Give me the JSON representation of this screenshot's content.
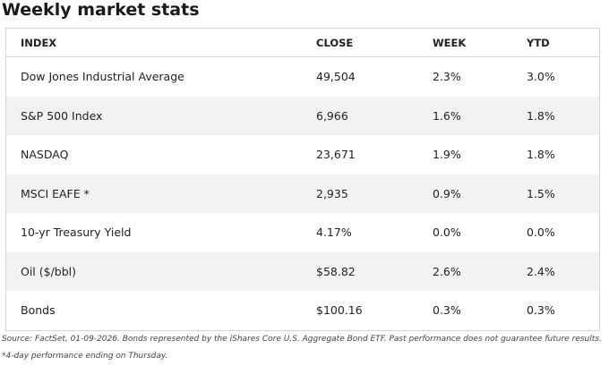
{
  "title": "Weekly market stats",
  "table": {
    "header": [
      "INDEX",
      "CLOSE",
      "WEEK",
      "YTD"
    ],
    "rows": [
      [
        "Dow Jones Industrial Average",
        "49,504",
        "2.3%",
        "3.0%"
      ],
      [
        "S&P 500 Index",
        "6,966",
        "1.6%",
        "1.8%"
      ],
      [
        "NASDAQ",
        "23,671",
        "1.9%",
        "1.8%"
      ],
      [
        "MSCI EAFE *",
        "2,935",
        "0.9%",
        "1.5%"
      ],
      [
        "10-yr Treasury Yield",
        "4.17%",
        "0.0%",
        "0.0%"
      ],
      [
        "Oil ($/bbl)",
        "$58.82",
        "2.6%",
        "2.4%"
      ],
      [
        "Bonds",
        "$100.16",
        "0.3%",
        "0.3%"
      ]
    ]
  },
  "footnote": "Source: FactSet, 01-09-2026. Bonds represented by the iShares Core U.S. Aggregate Bond ETF. Past performance does not guarantee future results. *4-day performance ending on Thursday."
}
